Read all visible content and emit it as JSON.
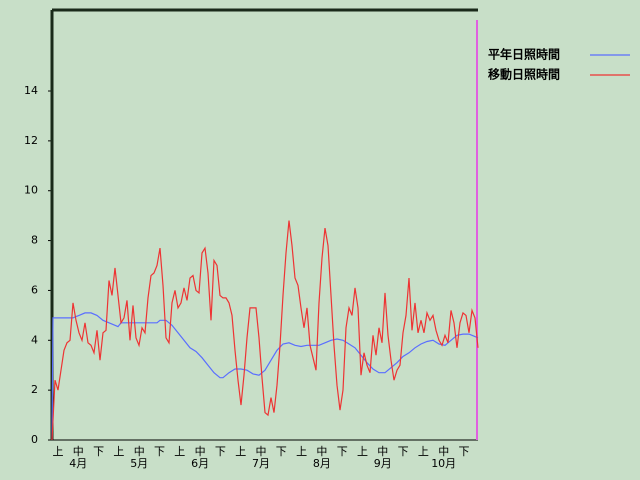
{
  "chart_data": {
    "type": "line",
    "categories": [
      "上",
      "中",
      "下",
      "上",
      "中",
      "下",
      "上",
      "中",
      "下",
      "上",
      "中",
      "下",
      "上",
      "中",
      "下",
      "上",
      "中",
      "下",
      "上",
      "中",
      "下"
    ],
    "group_labels": [
      "4月",
      "5月",
      "6月",
      "7月",
      "8月",
      "9月",
      "10月"
    ],
    "xlim": [
      0,
      213
    ],
    "ylim": [
      0,
      17.25
    ],
    "yticks": [
      0,
      2,
      4,
      6,
      8,
      10,
      12,
      14
    ],
    "series": [
      {
        "name": "平年日照時間",
        "color": "#5a6eff",
        "x": [
          0,
          0.5,
          9,
          10.5,
          12,
          13.5,
          16.5,
          19.5,
          22.5,
          25.5,
          28.5,
          31.5,
          33,
          34.5,
          52.5,
          54,
          57,
          60,
          63,
          66,
          69,
          72,
          75,
          78,
          81,
          84,
          85.5,
          88.5,
          91.5,
          94.5,
          97.5,
          100.5,
          103.5,
          106.5,
          109.5,
          112.5,
          115.5,
          118.5,
          121.5,
          124.5,
          127.5,
          130.5,
          133.5,
          136.5,
          139.5,
          142.5,
          145.5,
          148.5,
          151.5,
          154.5,
          157.5,
          160.5,
          163.5,
          166.5,
          169.5,
          172.5,
          175.5,
          178.5,
          181.5,
          184.5,
          187.5,
          190.5,
          193.5,
          196.5,
          199.5,
          202.5,
          205.5,
          208.5,
          211.5,
          213
        ],
        "values": [
          0,
          4.9,
          4.9,
          4.9,
          4.95,
          5.0,
          5.1,
          5.1,
          5.0,
          4.8,
          4.7,
          4.6,
          4.55,
          4.7,
          4.7,
          4.8,
          4.8,
          4.6,
          4.3,
          4.0,
          3.7,
          3.55,
          3.3,
          3.0,
          2.7,
          2.5,
          2.5,
          2.7,
          2.85,
          2.85,
          2.8,
          2.65,
          2.6,
          2.8,
          3.2,
          3.6,
          3.85,
          3.9,
          3.8,
          3.75,
          3.8,
          3.8,
          3.8,
          3.9,
          4.0,
          4.05,
          4.0,
          3.85,
          3.7,
          3.4,
          3.1,
          2.85,
          2.7,
          2.7,
          2.9,
          3.1,
          3.35,
          3.5,
          3.7,
          3.85,
          3.95,
          4.0,
          3.85,
          3.8,
          4.0,
          4.2,
          4.25,
          4.25,
          4.15,
          4.1
        ]
      },
      {
        "name": "移動日照時間",
        "color": "#ee3333",
        "x": [
          0,
          1.5,
          3,
          4.5,
          6,
          7.5,
          9,
          10.5,
          12,
          13.5,
          15,
          16.5,
          18,
          19.5,
          21,
          22.5,
          24,
          25.5,
          27,
          28.5,
          30,
          31.5,
          33,
          34.5,
          36,
          37.5,
          39,
          40.5,
          42,
          43.5,
          45,
          46.5,
          48,
          49.5,
          51,
          52.5,
          54,
          55.5,
          57,
          58.5,
          60,
          61.5,
          63,
          64.5,
          66,
          67.5,
          69,
          70.5,
          72,
          73.5,
          75,
          76.5,
          78,
          79.5,
          81,
          82.5,
          84,
          85.5,
          87,
          88.5,
          90,
          91.5,
          93,
          94.5,
          96,
          97.5,
          99,
          100.5,
          102,
          103.5,
          105,
          106.5,
          108,
          109.5,
          111,
          112.5,
          114,
          115.5,
          117,
          118.5,
          120,
          121.5,
          123,
          124.5,
          126,
          127.5,
          129,
          130.5,
          132,
          133.5,
          135,
          136.5,
          138,
          139.5,
          141,
          142.5,
          144,
          145.5,
          147,
          148.5,
          150,
          151.5,
          153,
          154.5,
          156,
          157.5,
          159,
          160.5,
          162,
          163.5,
          165,
          166.5,
          168,
          169.5,
          171,
          172.5,
          174,
          175.5,
          177,
          178.5,
          180,
          181.5,
          183,
          184.5,
          186,
          187.5,
          189,
          190.5,
          192,
          193.5,
          195,
          196.5,
          198,
          199.5,
          201,
          202.5,
          204,
          205.5,
          207,
          208.5,
          210,
          211.5,
          213
        ],
        "values": [
          0,
          2.4,
          2.0,
          2.8,
          3.6,
          3.9,
          4.0,
          5.5,
          4.8,
          4.3,
          4.0,
          4.7,
          3.9,
          3.8,
          3.5,
          4.4,
          3.2,
          4.3,
          4.4,
          6.4,
          5.8,
          6.9,
          5.8,
          4.7,
          4.9,
          5.6,
          4.0,
          5.4,
          4.1,
          3.8,
          4.5,
          4.3,
          5.7,
          6.6,
          6.7,
          7.0,
          7.7,
          6.2,
          4.1,
          3.9,
          5.5,
          6.0,
          5.3,
          5.5,
          6.1,
          5.6,
          6.5,
          6.6,
          6.0,
          5.9,
          7.5,
          7.7,
          6.7,
          4.8,
          7.2,
          7.0,
          5.8,
          5.7,
          5.7,
          5.5,
          5.0,
          3.6,
          2.4,
          1.4,
          2.6,
          4.1,
          5.3,
          5.3,
          5.3,
          4.1,
          2.5,
          1.1,
          1.0,
          1.7,
          1.1,
          2.2,
          3.8,
          5.8,
          7.5,
          8.8,
          7.8,
          6.5,
          6.2,
          5.3,
          4.5,
          5.3,
          3.8,
          3.3,
          2.8,
          5.5,
          7.3,
          8.5,
          7.8,
          5.8,
          3.8,
          2.2,
          1.2,
          2.0,
          4.5,
          5.3,
          5.0,
          6.1,
          5.3,
          2.6,
          3.5,
          3.0,
          2.7,
          4.2,
          3.4,
          4.5,
          3.9,
          5.9,
          4.2,
          3.2,
          2.4,
          2.8,
          3.0,
          4.3,
          5.0,
          6.5,
          4.4,
          5.5,
          4.3,
          4.8,
          4.3,
          5.1,
          4.8,
          5.0,
          4.4,
          4.0,
          3.8,
          4.2,
          3.9,
          5.2,
          4.7,
          3.7,
          4.7,
          5.1,
          5.0,
          4.3,
          5.2,
          4.9,
          3.7
        ]
      }
    ]
  }
}
